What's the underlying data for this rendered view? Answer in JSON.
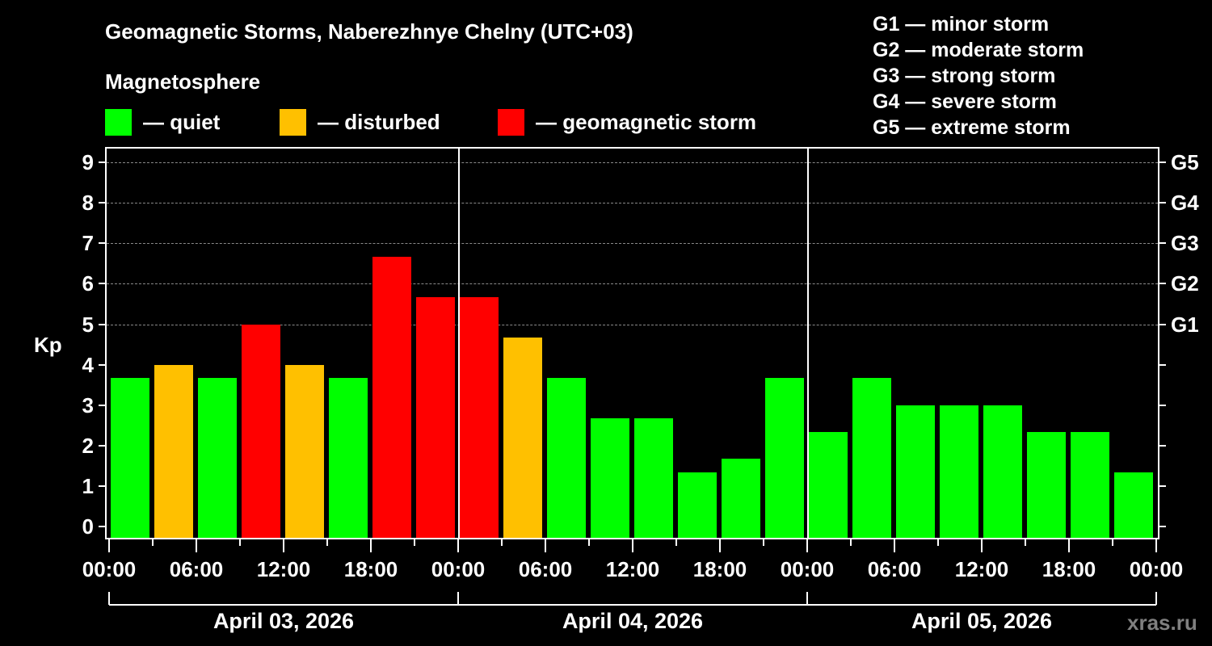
{
  "header": {
    "title": "Geomagnetic Storms, Naberezhnye Chelny (UTC+03)",
    "subtitle": "Magnetosphere"
  },
  "legend": {
    "items": [
      {
        "label": "— quiet",
        "color": "#00ff00"
      },
      {
        "label": "— disturbed",
        "color": "#ffc000"
      },
      {
        "label": "— geomagnetic storm",
        "color": "#ff0000"
      }
    ]
  },
  "g_scale_legend": [
    "G1 — minor storm",
    "G2 — moderate storm",
    "G3 — strong storm",
    "G4 — severe storm",
    "G5 — extreme storm"
  ],
  "axes": {
    "ylabel": "Kp",
    "yticks": [
      "0",
      "1",
      "2",
      "3",
      "4",
      "5",
      "6",
      "7",
      "8",
      "9"
    ],
    "right_labels": [
      {
        "value": 5,
        "label": "G1"
      },
      {
        "value": 6,
        "label": "G2"
      },
      {
        "value": 7,
        "label": "G3"
      },
      {
        "value": 8,
        "label": "G4"
      },
      {
        "value": 9,
        "label": "G5"
      }
    ],
    "xticks": [
      "00:00",
      "06:00",
      "12:00",
      "18:00",
      "00:00",
      "06:00",
      "12:00",
      "18:00",
      "00:00",
      "06:00",
      "12:00",
      "18:00",
      "00:00"
    ],
    "days": [
      "April 03, 2026",
      "April 04, 2026",
      "April 05, 2026"
    ]
  },
  "watermark": "xras.ru",
  "colors": {
    "quiet": "#00ff00",
    "disturbed": "#ffc000",
    "storm": "#ff0000",
    "background": "#000000",
    "grid": "#8a8a8a"
  },
  "chart_data": {
    "type": "bar",
    "title": "Geomagnetic Storms, Naberezhnye Chelny (UTC+03)",
    "xlabel": "",
    "ylabel": "Kp",
    "ylim": [
      0,
      9
    ],
    "grid": "dashed horizontal at 5-9",
    "legend_position": "top",
    "categories": [
      "Apr 03 00:00",
      "Apr 03 03:00",
      "Apr 03 06:00",
      "Apr 03 09:00",
      "Apr 03 12:00",
      "Apr 03 15:00",
      "Apr 03 18:00",
      "Apr 03 21:00",
      "Apr 04 00:00",
      "Apr 04 03:00",
      "Apr 04 06:00",
      "Apr 04 09:00",
      "Apr 04 12:00",
      "Apr 04 15:00",
      "Apr 04 18:00",
      "Apr 04 21:00",
      "Apr 05 00:00",
      "Apr 05 03:00",
      "Apr 05 06:00",
      "Apr 05 09:00",
      "Apr 05 12:00",
      "Apr 05 15:00",
      "Apr 05 18:00",
      "Apr 05 21:00"
    ],
    "values": [
      3.67,
      4.0,
      3.67,
      5.0,
      4.0,
      3.67,
      6.67,
      5.67,
      5.67,
      4.67,
      3.67,
      2.67,
      2.67,
      1.33,
      1.67,
      3.67,
      2.33,
      3.67,
      3.0,
      3.0,
      3.0,
      2.33,
      2.33,
      1.33
    ],
    "status": [
      "quiet",
      "disturbed",
      "quiet",
      "storm",
      "disturbed",
      "quiet",
      "storm",
      "storm",
      "storm",
      "disturbed",
      "quiet",
      "quiet",
      "quiet",
      "quiet",
      "quiet",
      "quiet",
      "quiet",
      "quiet",
      "quiet",
      "quiet",
      "quiet",
      "quiet",
      "quiet",
      "quiet"
    ]
  }
}
